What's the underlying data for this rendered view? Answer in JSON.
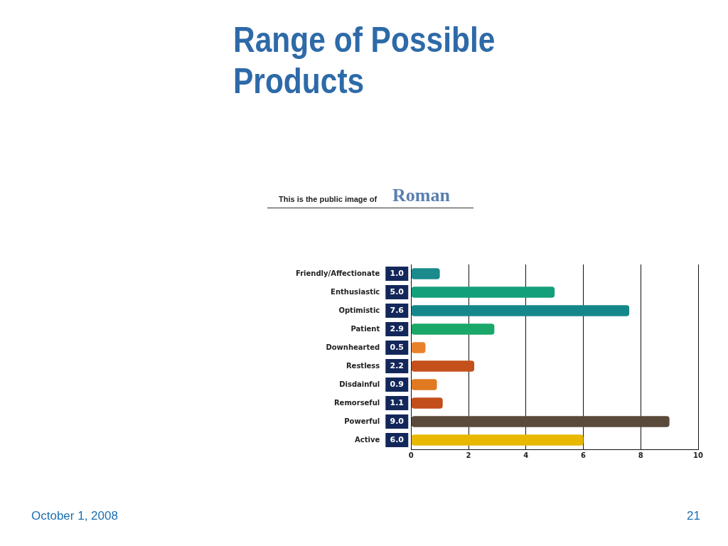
{
  "chart_data": {
    "type": "bar",
    "orientation": "horizontal",
    "title": "Range of Possible Products",
    "annotations": [
      "This is the public image of",
      "Roman",
      "October 1, 2008",
      "21"
    ],
    "categories": [
      "Friendly/Affectionate",
      "Enthusiastic",
      "Optimistic",
      "Patient",
      "Downhearted",
      "Restless",
      "Disdainful",
      "Remorseful",
      "Powerful",
      "Active"
    ],
    "values": [
      1.0,
      5.0,
      7.6,
      2.9,
      0.5,
      2.2,
      0.9,
      1.1,
      9.0,
      6.0
    ],
    "value_labels": [
      "1.0",
      "5.0",
      "7.6",
      "2.9",
      "0.5",
      "2.2",
      "0.9",
      "1.1",
      "9.0",
      "6.0"
    ],
    "colors": [
      "#1a8a8c",
      "#12a07a",
      "#15878a",
      "#1aa86a",
      "#e8822a",
      "#c4501c",
      "#e07a20",
      "#c24e1c",
      "#594a3b",
      "#e8b800"
    ],
    "xlim": [
      0,
      10
    ],
    "xticks": [
      0,
      2,
      4,
      6,
      8,
      10
    ],
    "grid": "x",
    "legend": false
  }
}
